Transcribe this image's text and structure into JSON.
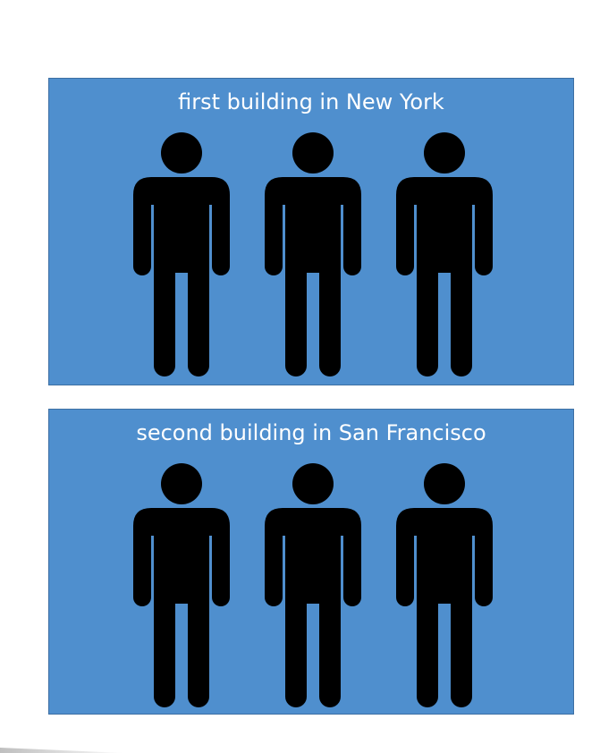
{
  "buildings": [
    {
      "title": "first building in New York",
      "people_count": 3
    },
    {
      "title": "second building in San Francisco",
      "people_count": 3
    }
  ],
  "colors": {
    "panel": "#4f8fce",
    "panel_border": "#3d6fa3",
    "person": "#000000",
    "title_text": "#ffffff"
  },
  "icons": {
    "person": "person-icon"
  }
}
